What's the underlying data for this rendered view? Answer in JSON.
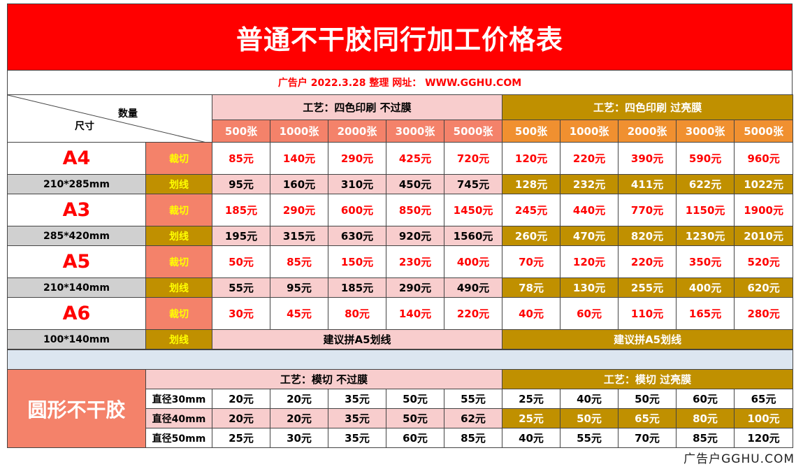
{
  "title": "普通不干胶同行加工价格表",
  "subtitle": "广告户 2022.3.28 整理 网址： WWW.GGHU.COM",
  "corner": {
    "qty_label": "数量",
    "size_label": "尺寸"
  },
  "group_headers": {
    "no_film": "工艺：四色印刷 不过膜",
    "glossy_film": "工艺：四色印刷 过亮膜"
  },
  "quantities": [
    "500张",
    "1000张",
    "2000张",
    "3000张",
    "5000张"
  ],
  "sizes": [
    {
      "name": "A4",
      "dims": "210*285mm",
      "cut": {
        "label": "裁切",
        "no_film": [
          "85元",
          "140元",
          "290元",
          "425元",
          "720元"
        ],
        "glossy": [
          "120元",
          "220元",
          "390元",
          "590元",
          "960元"
        ]
      },
      "line": {
        "label": "划线",
        "no_film": [
          "95元",
          "160元",
          "310元",
          "450元",
          "745元"
        ],
        "glossy": [
          "128元",
          "232元",
          "411元",
          "622元",
          "1022元"
        ]
      }
    },
    {
      "name": "A3",
      "dims": "285*420mm",
      "cut": {
        "label": "裁切",
        "no_film": [
          "185元",
          "290元",
          "600元",
          "850元",
          "1450元"
        ],
        "glossy": [
          "245元",
          "440元",
          "770元",
          "1150元",
          "1900元"
        ]
      },
      "line": {
        "label": "划线",
        "no_film": [
          "195元",
          "315元",
          "630元",
          "920元",
          "1560元"
        ],
        "glossy": [
          "260元",
          "470元",
          "820元",
          "1230元",
          "2010元"
        ]
      }
    },
    {
      "name": "A5",
      "dims": "210*140mm",
      "cut": {
        "label": "裁切",
        "no_film": [
          "50元",
          "85元",
          "150元",
          "230元",
          "400元"
        ],
        "glossy": [
          "70元",
          "120元",
          "220元",
          "350元",
          "520元"
        ]
      },
      "line": {
        "label": "划线",
        "no_film": [
          "55元",
          "95元",
          "185元",
          "290元",
          "490元"
        ],
        "glossy": [
          "78元",
          "130元",
          "255元",
          "400元",
          "620元"
        ]
      }
    },
    {
      "name": "A6",
      "dims": "100*140mm",
      "cut": {
        "label": "裁切",
        "no_film": [
          "30元",
          "45元",
          "80元",
          "140元",
          "220元"
        ],
        "glossy": [
          "40元",
          "60元",
          "110元",
          "165元",
          "280元"
        ]
      },
      "line": {
        "label": "划线",
        "note_no_film": "建议拼A5划线",
        "note_glossy": "建议拼A5划线"
      }
    }
  ],
  "round": {
    "label": "圆形不干胶",
    "header_no_film": "工艺：模切 不过膜",
    "header_glossy": "工艺：模切 过亮膜",
    "rows": [
      {
        "diameter": "直径30mm",
        "no_film": [
          "20元",
          "20元",
          "35元",
          "50元",
          "55元"
        ],
        "glossy": [
          "25元",
          "40元",
          "50元",
          "60元",
          "65元"
        ]
      },
      {
        "diameter": "直径40mm",
        "no_film": [
          "20元",
          "20元",
          "35元",
          "50元",
          "62元"
        ],
        "glossy": [
          "25元",
          "50元",
          "65元",
          "80元",
          "100元"
        ]
      },
      {
        "diameter": "直径50mm",
        "no_film": [
          "25元",
          "30元",
          "35元",
          "60元",
          "85元"
        ],
        "glossy": [
          "40元",
          "55元",
          "70元",
          "85元",
          "120元"
        ]
      }
    ]
  },
  "watermark": "广告户GGHU.COM"
}
